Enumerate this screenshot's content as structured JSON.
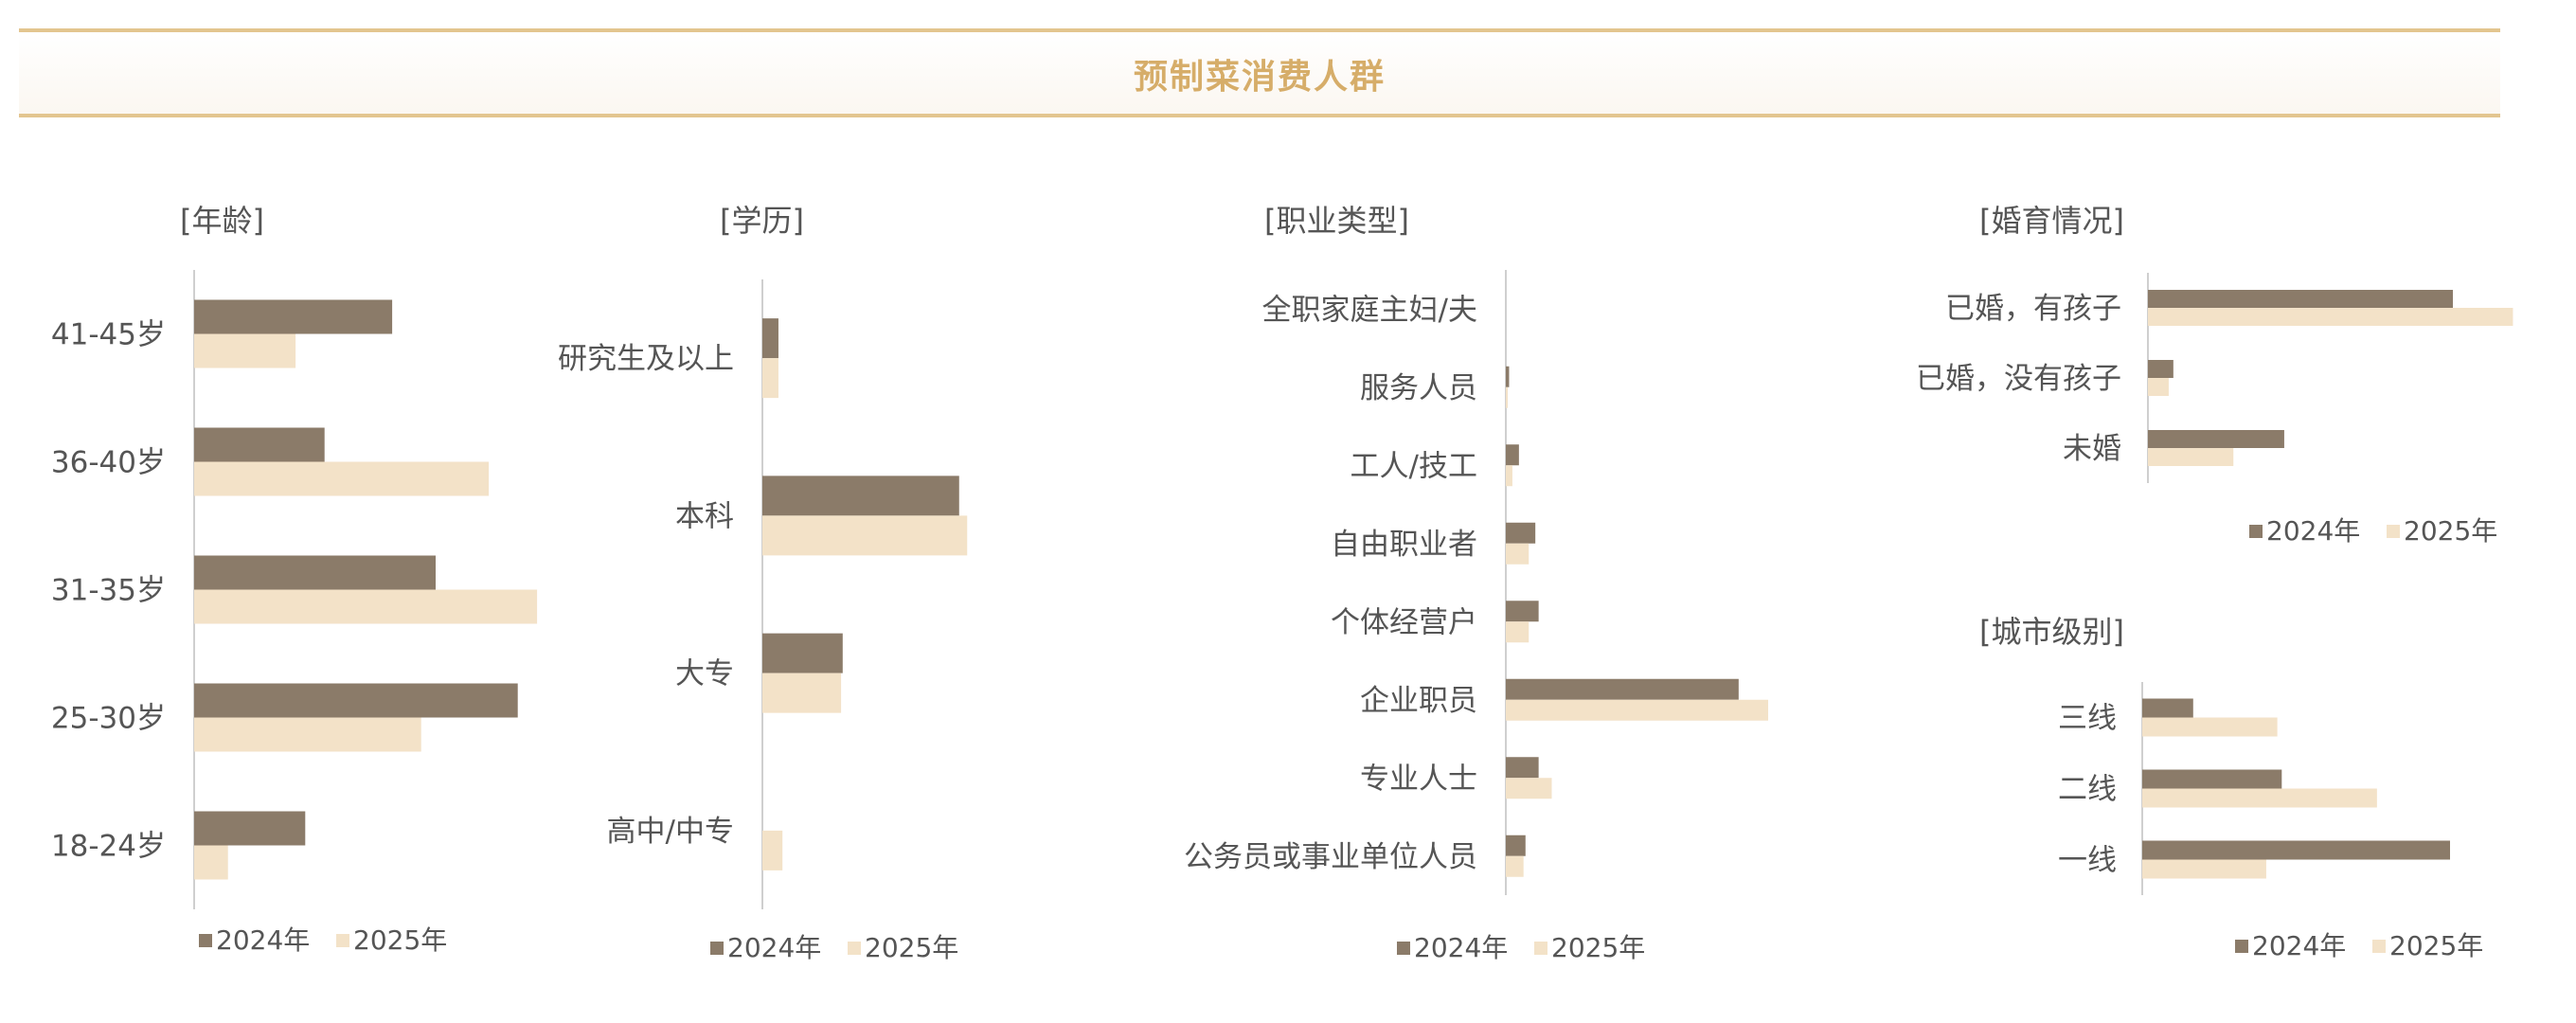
{
  "banner": {
    "title": "预制菜消费人群"
  },
  "colors": {
    "s2024": "#8b7b69",
    "s2025": "#f3e2c8",
    "accent": "#d6ad69",
    "axis": "#cfcfcf"
  },
  "chart_data": [
    {
      "id": "age",
      "type": "bar",
      "orientation": "horizontal",
      "title": "[年龄]",
      "categories": [
        "41-45岁",
        "36-40岁",
        "31-35岁",
        "25-30岁",
        "18-24岁"
      ],
      "series": [
        {
          "name": "2024年",
          "values": [
            20.5,
            13.5,
            25.0,
            33.5,
            11.5
          ]
        },
        {
          "name": "2025年",
          "values": [
            10.5,
            30.5,
            35.5,
            23.5,
            3.5
          ]
        }
      ],
      "xlim": [
        0,
        40
      ],
      "grid": false,
      "legend": "bottom"
    },
    {
      "id": "edu",
      "type": "bar",
      "orientation": "horizontal",
      "title": "[学历]",
      "categories": [
        "研究生及以上",
        "本科",
        "大专",
        "高中/中专"
      ],
      "series": [
        {
          "name": "2024年",
          "values": [
            2.0,
            24.5,
            10.0,
            0
          ]
        },
        {
          "name": "2025年",
          "values": [
            2.0,
            25.5,
            9.8,
            2.5
          ]
        }
      ],
      "xlim": [
        0,
        40
      ],
      "grid": false,
      "legend": "bottom"
    },
    {
      "id": "job",
      "type": "bar",
      "orientation": "horizontal",
      "title": "[职业类型]",
      "categories": [
        "全职家庭主妇/夫",
        "服务人员",
        "工人/技工",
        "自由职业者",
        "个体经营户",
        "企业职员",
        "专业人士",
        "公务员或事业单位人员"
      ],
      "series": [
        {
          "name": "2024年",
          "values": [
            0,
            0.5,
            2.0,
            4.5,
            5.0,
            35.5,
            5.0,
            3.0
          ]
        },
        {
          "name": "2025年",
          "values": [
            0,
            0.3,
            1.0,
            3.5,
            3.5,
            40.0,
            7.0,
            2.7
          ]
        }
      ],
      "xlim": [
        0,
        50
      ],
      "grid": false,
      "legend": "bottom"
    },
    {
      "id": "family",
      "type": "bar",
      "orientation": "horizontal",
      "title": "[婚育情况]",
      "categories": [
        "已婚，有孩子",
        "已婚，没有孩子",
        "未婚"
      ],
      "series": [
        {
          "name": "2024年",
          "values": [
            66.0,
            5.5,
            29.5
          ]
        },
        {
          "name": "2025年",
          "values": [
            79.0,
            4.5,
            18.5
          ]
        }
      ],
      "xlim": [
        0,
        80
      ],
      "grid": false,
      "legend": "bottom"
    },
    {
      "id": "city",
      "type": "bar",
      "orientation": "horizontal",
      "title": "[城市级别]",
      "categories": [
        "三线",
        "二线",
        "一线"
      ],
      "series": [
        {
          "name": "2024年",
          "values": [
            11.5,
            31.5,
            69.5
          ]
        },
        {
          "name": "2025年",
          "values": [
            30.5,
            53.0,
            28.0
          ]
        }
      ],
      "xlim": [
        0,
        80
      ],
      "grid": false,
      "legend": "bottom"
    }
  ]
}
